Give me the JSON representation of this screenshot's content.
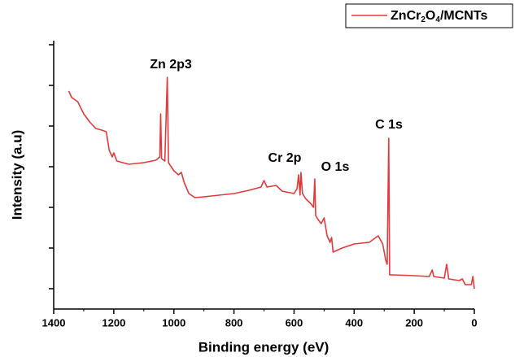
{
  "chart_data": {
    "type": "line",
    "x_label": "Binding energy (eV)",
    "y_label": "Intensity (a.u)",
    "xlim": [
      1400,
      0
    ],
    "xticks": [
      1400,
      1200,
      1000,
      800,
      600,
      400,
      200,
      0
    ],
    "xminorticks": [
      1300,
      1100,
      900,
      700,
      500,
      300,
      100
    ],
    "ylim": [
      0,
      330
    ],
    "yticks": [
      25,
      75,
      125,
      175,
      225,
      275,
      325
    ],
    "legend_position": "upper right",
    "annotations": [
      "Zn 2p3",
      "Cr 2p",
      "O 1s",
      "C 1s"
    ],
    "series": [
      {
        "name": "ZnCr2O4/MCNTs",
        "color": "#e23a3a",
        "x": [
          1350,
          1340,
          1320,
          1300,
          1280,
          1260,
          1240,
          1225,
          1215,
          1205,
          1200,
          1190,
          1150,
          1100,
          1060,
          1047,
          1044,
          1041,
          1030,
          1022,
          1018,
          1000,
          985,
          975,
          965,
          950,
          930,
          900,
          850,
          800,
          750,
          710,
          700,
          690,
          660,
          640,
          600,
          590,
          585,
          580,
          577,
          572,
          560,
          545,
          535,
          531,
          528,
          520,
          510,
          500,
          490,
          480,
          475,
          470,
          440,
          400,
          350,
          320,
          305,
          295,
          290,
          285,
          282,
          270,
          200,
          150,
          140,
          135,
          100,
          92,
          85,
          50,
          40,
          30,
          10,
          5,
          0
        ],
        "values": [
          268,
          260,
          255,
          240,
          230,
          222,
          220,
          218,
          195,
          187,
          192,
          182,
          178,
          180,
          183,
          187,
          240,
          185,
          182,
          285,
          180,
          170,
          165,
          168,
          155,
          142,
          137,
          138,
          140,
          142,
          146,
          150,
          158,
          150,
          152,
          145,
          142,
          148,
          165,
          140,
          168,
          142,
          135,
          130,
          125,
          160,
          115,
          110,
          105,
          112,
          90,
          82,
          88,
          70,
          75,
          80,
          82,
          90,
          80,
          60,
          55,
          210,
          42,
          42,
          41,
          40,
          48,
          40,
          38,
          55,
          37,
          35,
          37,
          30,
          30,
          40,
          25
        ]
      }
    ]
  }
}
